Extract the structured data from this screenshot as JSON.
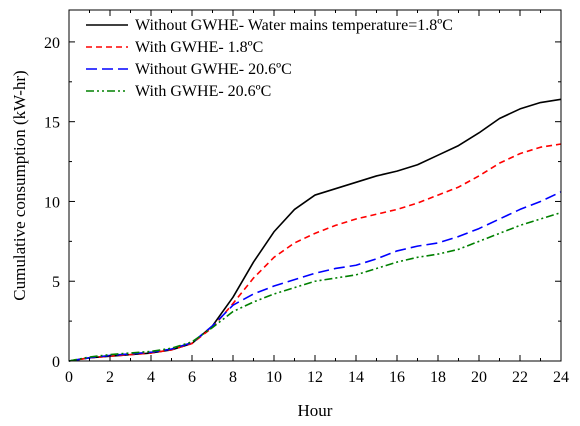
{
  "chart_data": {
    "type": "line",
    "xlabel": "Hour",
    "ylabel": "Cumulative consumption (kW-hr)",
    "xlim": [
      0,
      24
    ],
    "ylim": [
      0,
      22
    ],
    "x_ticks": [
      0,
      2,
      4,
      6,
      8,
      10,
      12,
      14,
      16,
      18,
      20,
      22,
      24
    ],
    "y_ticks": [
      0,
      5,
      10,
      15,
      20
    ],
    "grid": false,
    "legend_position": "top-left",
    "x": [
      0,
      1,
      2,
      3,
      4,
      5,
      6,
      7,
      8,
      9,
      10,
      11,
      12,
      13,
      14,
      15,
      16,
      17,
      18,
      19,
      20,
      21,
      22,
      23,
      24
    ],
    "series": [
      {
        "name": "Without GWHE- Water mains temperature=1.8ºC",
        "color": "#000000",
        "dash": "solid",
        "values": [
          0,
          0.2,
          0.3,
          0.4,
          0.5,
          0.7,
          1.1,
          2.2,
          4.0,
          6.2,
          8.1,
          9.5,
          10.4,
          10.8,
          11.2,
          11.6,
          11.9,
          12.3,
          12.9,
          13.5,
          14.3,
          15.2,
          15.8,
          16.2,
          16.4
        ]
      },
      {
        "name": "With GWHE- 1.8ºC",
        "color": "#ff0000",
        "dash": "dashed",
        "values": [
          0,
          0.2,
          0.3,
          0.4,
          0.5,
          0.7,
          1.1,
          2.1,
          3.6,
          5.2,
          6.5,
          7.4,
          8.0,
          8.5,
          8.9,
          9.2,
          9.5,
          9.9,
          10.4,
          10.9,
          11.6,
          12.4,
          13.0,
          13.4,
          13.6
        ]
      },
      {
        "name": "Without GWHE- 20.6ºC",
        "color": "#0000ff",
        "dash": "longdash",
        "values": [
          0,
          0.2,
          0.35,
          0.45,
          0.55,
          0.75,
          1.15,
          2.2,
          3.5,
          4.2,
          4.7,
          5.1,
          5.5,
          5.8,
          6.0,
          6.4,
          6.9,
          7.2,
          7.4,
          7.8,
          8.3,
          8.9,
          9.5,
          10.0,
          10.6
        ]
      },
      {
        "name": "With GWHE- 20.6ºC",
        "color": "#008000",
        "dash": "dashdotdot",
        "values": [
          0,
          0.25,
          0.4,
          0.5,
          0.6,
          0.8,
          1.2,
          2.1,
          3.1,
          3.7,
          4.2,
          4.6,
          5.0,
          5.2,
          5.4,
          5.8,
          6.2,
          6.5,
          6.7,
          7.0,
          7.5,
          8.0,
          8.5,
          8.9,
          9.3
        ]
      }
    ]
  }
}
